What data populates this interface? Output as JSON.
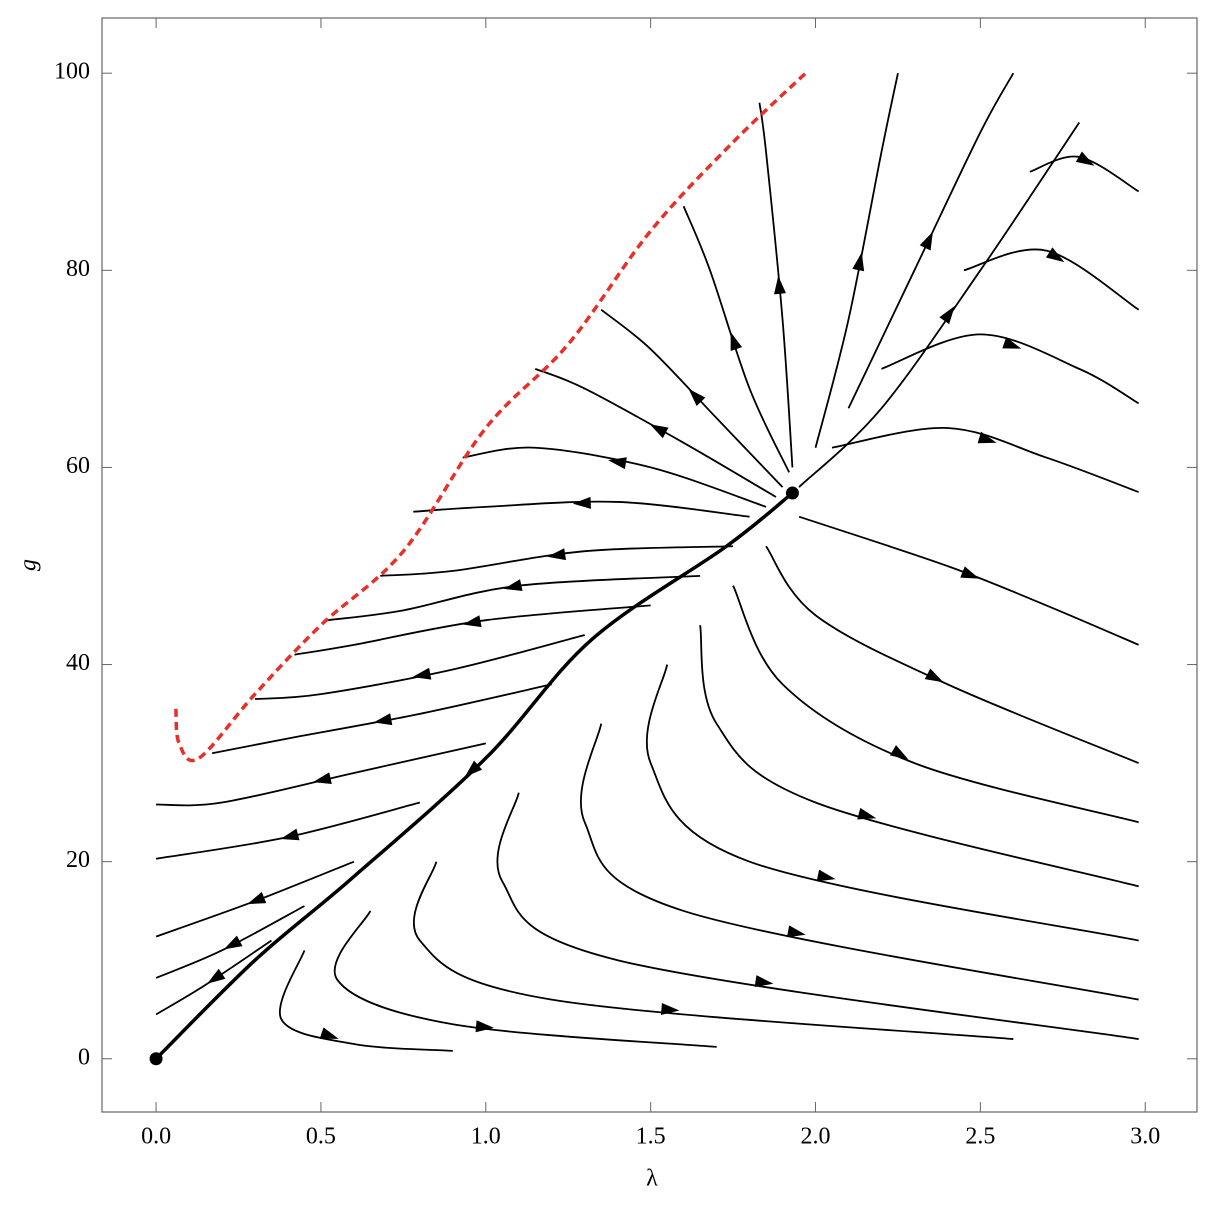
{
  "chart_data": {
    "type": "streamplot",
    "xlabel": "λ",
    "ylabel": "g",
    "xlim": [
      -0.164,
      3.157
    ],
    "ylim": [
      -5.4,
      105.6
    ],
    "xticks": [
      {
        "value": 0,
        "label": "0.0"
      },
      0.5,
      {
        "value": 1,
        "label": "1.0"
      },
      1.5,
      {
        "value": 2,
        "label": "2.0"
      },
      2.5,
      {
        "value": 3,
        "label": "3.0"
      }
    ],
    "yticks": [
      0,
      20,
      40,
      60,
      80,
      100
    ],
    "color": "#000000",
    "streamlines": [
      {
        "x": [
          1.0,
          0.6,
          0.2,
          0.0
        ],
        "y": [
          32,
          29,
          26,
          25.8
        ]
      },
      {
        "x": [
          0.8,
          0.4,
          0.0
        ],
        "y": [
          26,
          22.5,
          20.3
        ]
      },
      {
        "x": [
          0.6,
          0.3,
          0.0
        ],
        "y": [
          20,
          16,
          12.4
        ]
      },
      {
        "x": [
          0.45,
          0.2,
          0.0
        ],
        "y": [
          15.5,
          11,
          8.2
        ]
      },
      {
        "x": [
          0.35,
          0.15,
          0.0
        ],
        "y": [
          12,
          7.5,
          4.5
        ]
      },
      {
        "x": [
          1.2,
          0.8,
          0.4,
          0.17
        ],
        "y": [
          38,
          35,
          32.5,
          31
        ]
      },
      {
        "x": [
          1.3,
          0.9,
          0.5,
          0.3
        ],
        "y": [
          43,
          39.5,
          37,
          36.5
        ]
      },
      {
        "x": [
          1.5,
          1.0,
          0.6,
          0.42
        ],
        "y": [
          46,
          44.5,
          42,
          41
        ]
      },
      {
        "x": [
          1.65,
          1.1,
          0.75,
          0.52
        ],
        "y": [
          49,
          48,
          45.5,
          44.5
        ]
      },
      {
        "x": [
          1.75,
          1.3,
          0.9,
          0.68
        ],
        "y": [
          52,
          51.5,
          49.5,
          49
        ]
      },
      {
        "x": [
          1.8,
          1.4,
          1.0,
          0.78
        ],
        "y": [
          55,
          56.5,
          56,
          55.5
        ]
      },
      {
        "x": [
          1.85,
          1.5,
          1.15,
          0.93
        ],
        "y": [
          56,
          60,
          62,
          61
        ]
      },
      {
        "x": [
          1.88,
          1.6,
          1.3,
          1.15
        ],
        "y": [
          57,
          62.5,
          68,
          70
        ]
      },
      {
        "x": [
          1.9,
          1.7,
          1.5,
          1.35
        ],
        "y": [
          58,
          65,
          72,
          76
        ]
      },
      {
        "x": [
          1.92,
          1.8,
          1.68,
          1.6
        ],
        "y": [
          59.5,
          68,
          80,
          86.5
        ]
      },
      {
        "x": [
          1.93,
          1.9,
          1.85,
          1.83
        ],
        "y": [
          60,
          75,
          92,
          97
        ]
      },
      {
        "x": [
          2.0,
          2.1,
          2.2,
          2.25
        ],
        "y": [
          62,
          75,
          92,
          100
        ]
      },
      {
        "x": [
          2.1,
          2.3,
          2.5,
          2.6
        ],
        "y": [
          66,
          80,
          94,
          100
        ]
      },
      {
        "x": [
          1.95,
          2.2,
          2.5,
          2.8
        ],
        "y": [
          58,
          66,
          80,
          95
        ]
      },
      {
        "x": [
          2.05,
          2.4,
          2.7,
          2.98
        ],
        "y": [
          62,
          64,
          61,
          57.5
        ]
      },
      {
        "x": [
          2.2,
          2.5,
          2.8,
          2.98
        ],
        "y": [
          70,
          73.5,
          70,
          66.5
        ]
      },
      {
        "x": [
          2.45,
          2.7,
          2.98
        ],
        "y": [
          80,
          82,
          76
        ]
      },
      {
        "x": [
          2.65,
          2.8,
          2.98
        ],
        "y": [
          90,
          91.5,
          88
        ]
      },
      {
        "x": [
          1.95,
          2.4,
          2.7,
          2.98
        ],
        "y": [
          55,
          50,
          46,
          42
        ]
      },
      {
        "x": [
          1.85,
          2.0,
          2.4,
          2.98
        ],
        "y": [
          52,
          45,
          38,
          30
        ]
      },
      {
        "x": [
          1.75,
          1.9,
          2.3,
          2.98
        ],
        "y": [
          48,
          38,
          30,
          24
        ]
      },
      {
        "x": [
          1.65,
          1.7,
          2.0,
          2.98
        ],
        "y": [
          44,
          34,
          26,
          17.5
        ]
      },
      {
        "x": [
          1.55,
          1.5,
          1.8,
          2.98
        ],
        "y": [
          40,
          30,
          20,
          12
        ]
      },
      {
        "x": [
          1.35,
          1.3,
          1.6,
          2.98
        ],
        "y": [
          34,
          24,
          15,
          6
        ]
      },
      {
        "x": [
          1.1,
          1.05,
          1.4,
          2.98
        ],
        "y": [
          27,
          18,
          10,
          2
        ]
      },
      {
        "x": [
          0.85,
          0.8,
          1.2,
          2.6
        ],
        "y": [
          20,
          12,
          6,
          2
        ]
      },
      {
        "x": [
          0.65,
          0.55,
          0.9,
          1.7
        ],
        "y": [
          15,
          8,
          3.5,
          1.2
        ]
      },
      {
        "x": [
          0.45,
          0.38,
          0.6,
          0.9
        ],
        "y": [
          11,
          4,
          1.5,
          0.8
        ]
      }
    ],
    "separatrix": {
      "x": [
        1.93,
        1.73,
        1.32,
        1.0,
        0.59,
        0.3,
        0.0
      ],
      "y": [
        57.4,
        52,
        42.5,
        30.5,
        18.2,
        10,
        0
      ]
    },
    "boundary": {
      "color": "#e8302a",
      "dashed": true,
      "x": [
        0.06,
        0.07,
        0.13,
        0.3,
        0.5,
        0.75,
        1.0,
        1.25,
        1.5,
        1.75,
        1.97
      ],
      "y": [
        35.5,
        32,
        30.5,
        37,
        44,
        51.5,
        64,
        72.5,
        84,
        93,
        100
      ]
    },
    "fixed_points": {
      "x": [
        0,
        1.93
      ],
      "y": [
        0,
        57.4
      ]
    }
  }
}
